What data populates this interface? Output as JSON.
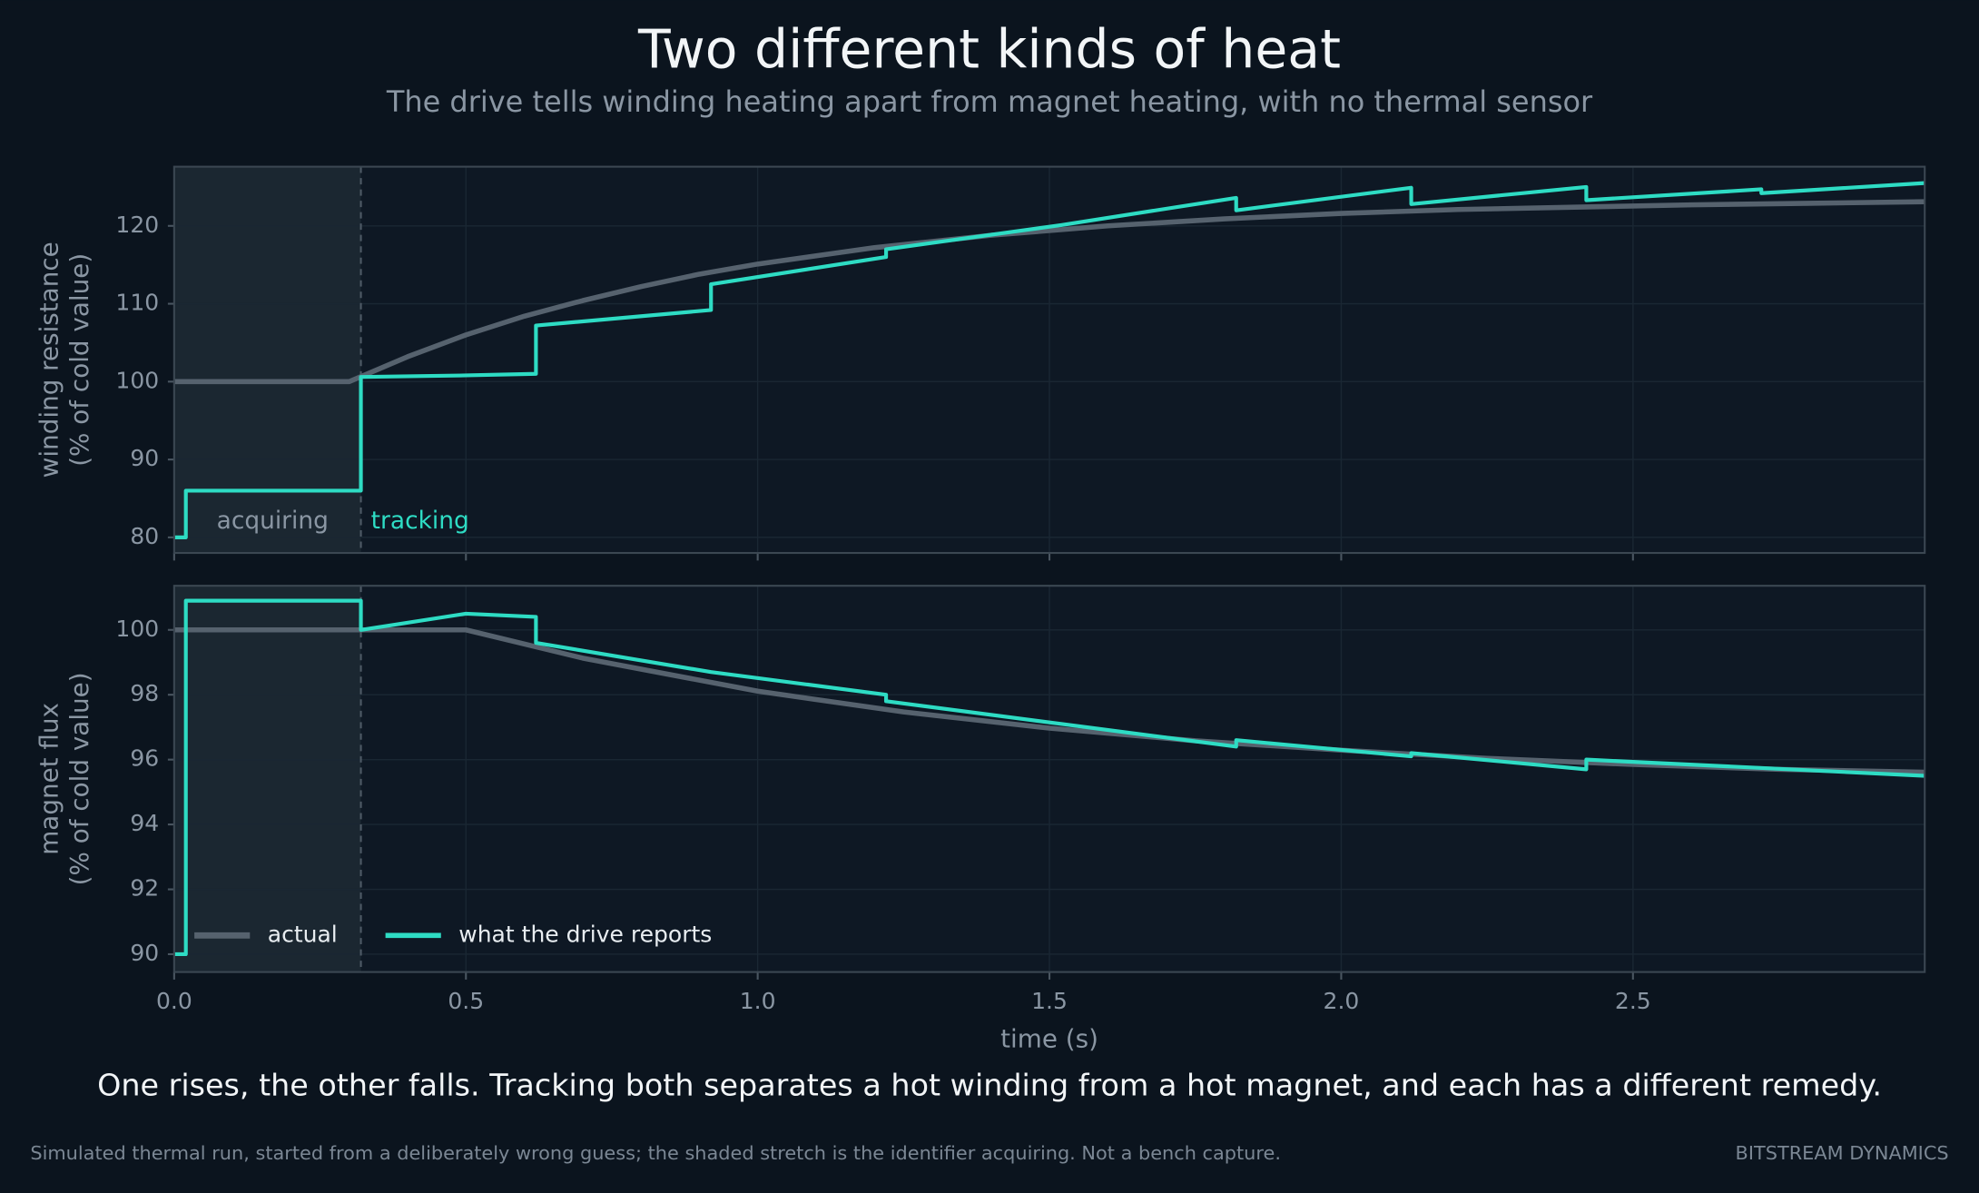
{
  "title": "Two different kinds of heat",
  "subtitle": "The drive tells winding heating apart from magnet heating, with no thermal sensor",
  "caption": "One rises, the other falls. Tracking both separates a hot winding from a hot magnet, and each has a different remedy.",
  "footnote": "Simulated thermal run, started from a deliberately wrong guess; the shaded stretch is the identifier acquiring. Not a bench capture.",
  "brand": "BITSTREAM DYNAMICS",
  "chart_data": [
    {
      "type": "line",
      "ylabel": [
        "winding resistance",
        "(% of cold value)"
      ],
      "xlim": [
        0,
        3.0
      ],
      "ylim": [
        78,
        127.6
      ],
      "xticks": [
        {
          "value": 0,
          "label": "0.0"
        },
        {
          "value": 0.5,
          "label": "0.5"
        },
        {
          "value": 1,
          "label": "1.0"
        },
        {
          "value": 1.5,
          "label": "1.5"
        },
        {
          "value": 2,
          "label": "2.0"
        },
        {
          "value": 2.5,
          "label": "2.5"
        }
      ],
      "show_xtick_labels": false,
      "yticks": [
        80,
        90,
        100,
        110,
        120
      ],
      "grid": true,
      "shade": [
        0,
        0.32
      ],
      "annotations": [
        {
          "text": "acquiring",
          "color": "#8a96a3"
        },
        {
          "text": "tracking",
          "color": "#2edcc4"
        }
      ],
      "series": [
        {
          "name": "actual",
          "color": "#56626e",
          "width": 4,
          "x": [
            0,
            0.1,
            0.2,
            0.3,
            0.4,
            0.5,
            0.6,
            0.7,
            0.8,
            0.9,
            1.0,
            1.2,
            1.4,
            1.6,
            1.8,
            2.0,
            2.2,
            2.4,
            2.6,
            2.8,
            3.0
          ],
          "values": [
            100,
            100,
            100,
            100,
            103.2,
            106.0,
            108.4,
            110.4,
            112.2,
            113.8,
            115.1,
            117.2,
            118.8,
            120.0,
            120.9,
            121.6,
            122.1,
            122.4,
            122.7,
            122.9,
            123.1
          ]
        },
        {
          "name": "what the drive reports",
          "color": "#2edcc4",
          "width": 3,
          "x": [
            0,
            0.02,
            0.02,
            0.32,
            0.32,
            0.5,
            0.62,
            0.62,
            0.92,
            0.92,
            1.22,
            1.22,
            1.52,
            1.82,
            1.82,
            2.12,
            2.12,
            2.42,
            2.42,
            2.72,
            2.72,
            3.0
          ],
          "values": [
            80,
            80,
            86,
            86,
            100.6,
            100.8,
            101,
            107.2,
            109.2,
            112.5,
            116,
            117,
            120.1,
            123.6,
            122,
            124.9,
            122.8,
            125,
            123.3,
            124.7,
            124.2,
            125.5
          ]
        }
      ]
    },
    {
      "type": "line",
      "ylabel": [
        "magnet flux",
        "(% of cold value)"
      ],
      "xlabel": "time (s)",
      "xlim": [
        0,
        3.0
      ],
      "ylim": [
        89.45,
        101.36
      ],
      "xticks": [
        {
          "value": 0,
          "label": "0.0"
        },
        {
          "value": 0.5,
          "label": "0.5"
        },
        {
          "value": 1,
          "label": "1.0"
        },
        {
          "value": 1.5,
          "label": "1.5"
        },
        {
          "value": 2,
          "label": "2.0"
        },
        {
          "value": 2.5,
          "label": "2.5"
        }
      ],
      "show_xtick_labels": true,
      "yticks": [
        90,
        92,
        94,
        96,
        98,
        100
      ],
      "grid": true,
      "shade": [
        0,
        0.32
      ],
      "legend": "lower left",
      "series": [
        {
          "name": "actual",
          "color": "#56626e",
          "width": 4,
          "x": [
            0,
            0.25,
            0.5,
            0.7,
            1.0,
            1.25,
            1.5,
            1.75,
            2.0,
            2.25,
            2.5,
            2.75,
            3.0
          ],
          "values": [
            100,
            100,
            100,
            99.13,
            98.11,
            97.47,
            96.97,
            96.58,
            96.29,
            96.04,
            95.85,
            95.7,
            95.61
          ]
        },
        {
          "name": "what the drive reports",
          "color": "#2edcc4",
          "width": 3,
          "x": [
            0,
            0.02,
            0.02,
            0.32,
            0.32,
            0.5,
            0.62,
            0.62,
            0.92,
            1.22,
            1.22,
            1.52,
            1.82,
            1.82,
            2.12,
            2.12,
            2.42,
            2.42,
            3.0
          ],
          "values": [
            90,
            90,
            100.9,
            100.9,
            100,
            100.5,
            100.4,
            99.6,
            98.7,
            98,
            97.8,
            97.1,
            96.4,
            96.6,
            96.1,
            96.2,
            95.7,
            96.0,
            95.5
          ]
        }
      ]
    }
  ]
}
